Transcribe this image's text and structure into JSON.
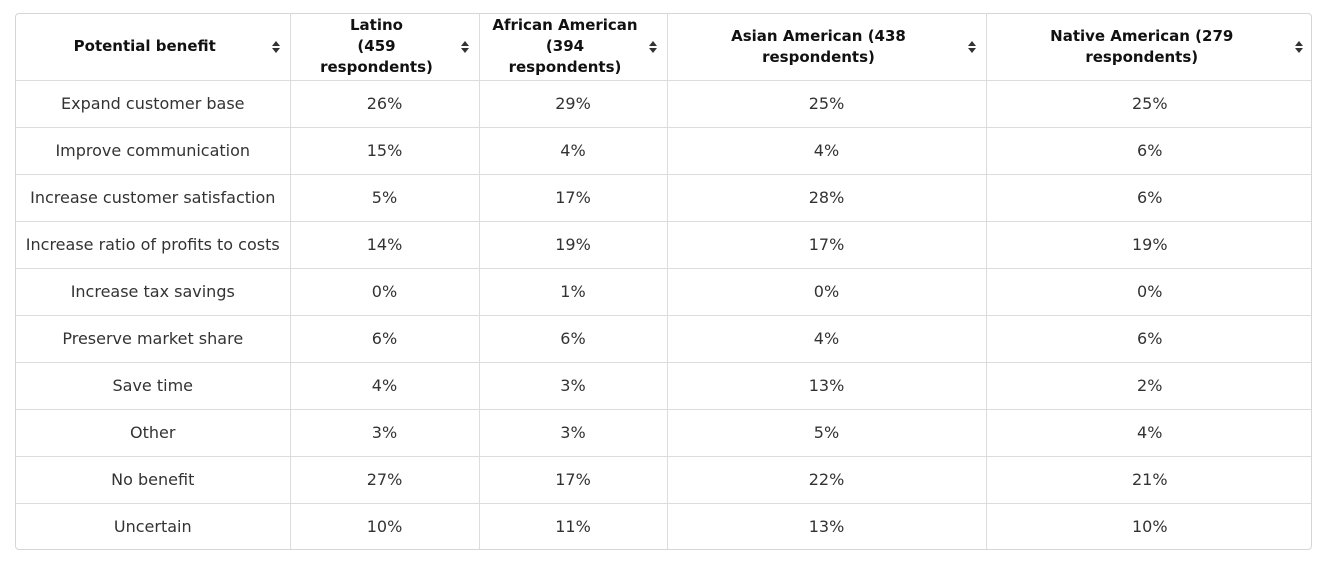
{
  "table": {
    "headers": [
      {
        "label": "Potential benefit",
        "sort_icon": "sort-icon"
      },
      {
        "label": "Latino\n(459 respondents)",
        "sort_icon": "sort-icon"
      },
      {
        "label": "African American\n(394 respondents)",
        "sort_icon": "sort-icon"
      },
      {
        "label": "Asian American (438 respondents)",
        "sort_icon": "sort-icon"
      },
      {
        "label": "Native American (279 respondents)",
        "sort_icon": "sort-icon"
      }
    ],
    "rows": [
      [
        "Expand customer base",
        "26%",
        "29%",
        "25%",
        "25%"
      ],
      [
        "Improve communication",
        "15%",
        "4%",
        "4%",
        "6%"
      ],
      [
        "Increase customer satisfaction",
        "5%",
        "17%",
        "28%",
        "6%"
      ],
      [
        "Increase ratio of profits to costs",
        "14%",
        "19%",
        "17%",
        "19%"
      ],
      [
        "Increase tax savings",
        "0%",
        "1%",
        "0%",
        "0%"
      ],
      [
        "Preserve market share",
        "6%",
        "6%",
        "4%",
        "6%"
      ],
      [
        "Save time",
        "4%",
        "3%",
        "13%",
        "2%"
      ],
      [
        "Other",
        "3%",
        "3%",
        "5%",
        "4%"
      ],
      [
        "No benefit",
        "27%",
        "17%",
        "22%",
        "21%"
      ],
      [
        "Uncertain",
        "10%",
        "11%",
        "13%",
        "10%"
      ]
    ]
  }
}
